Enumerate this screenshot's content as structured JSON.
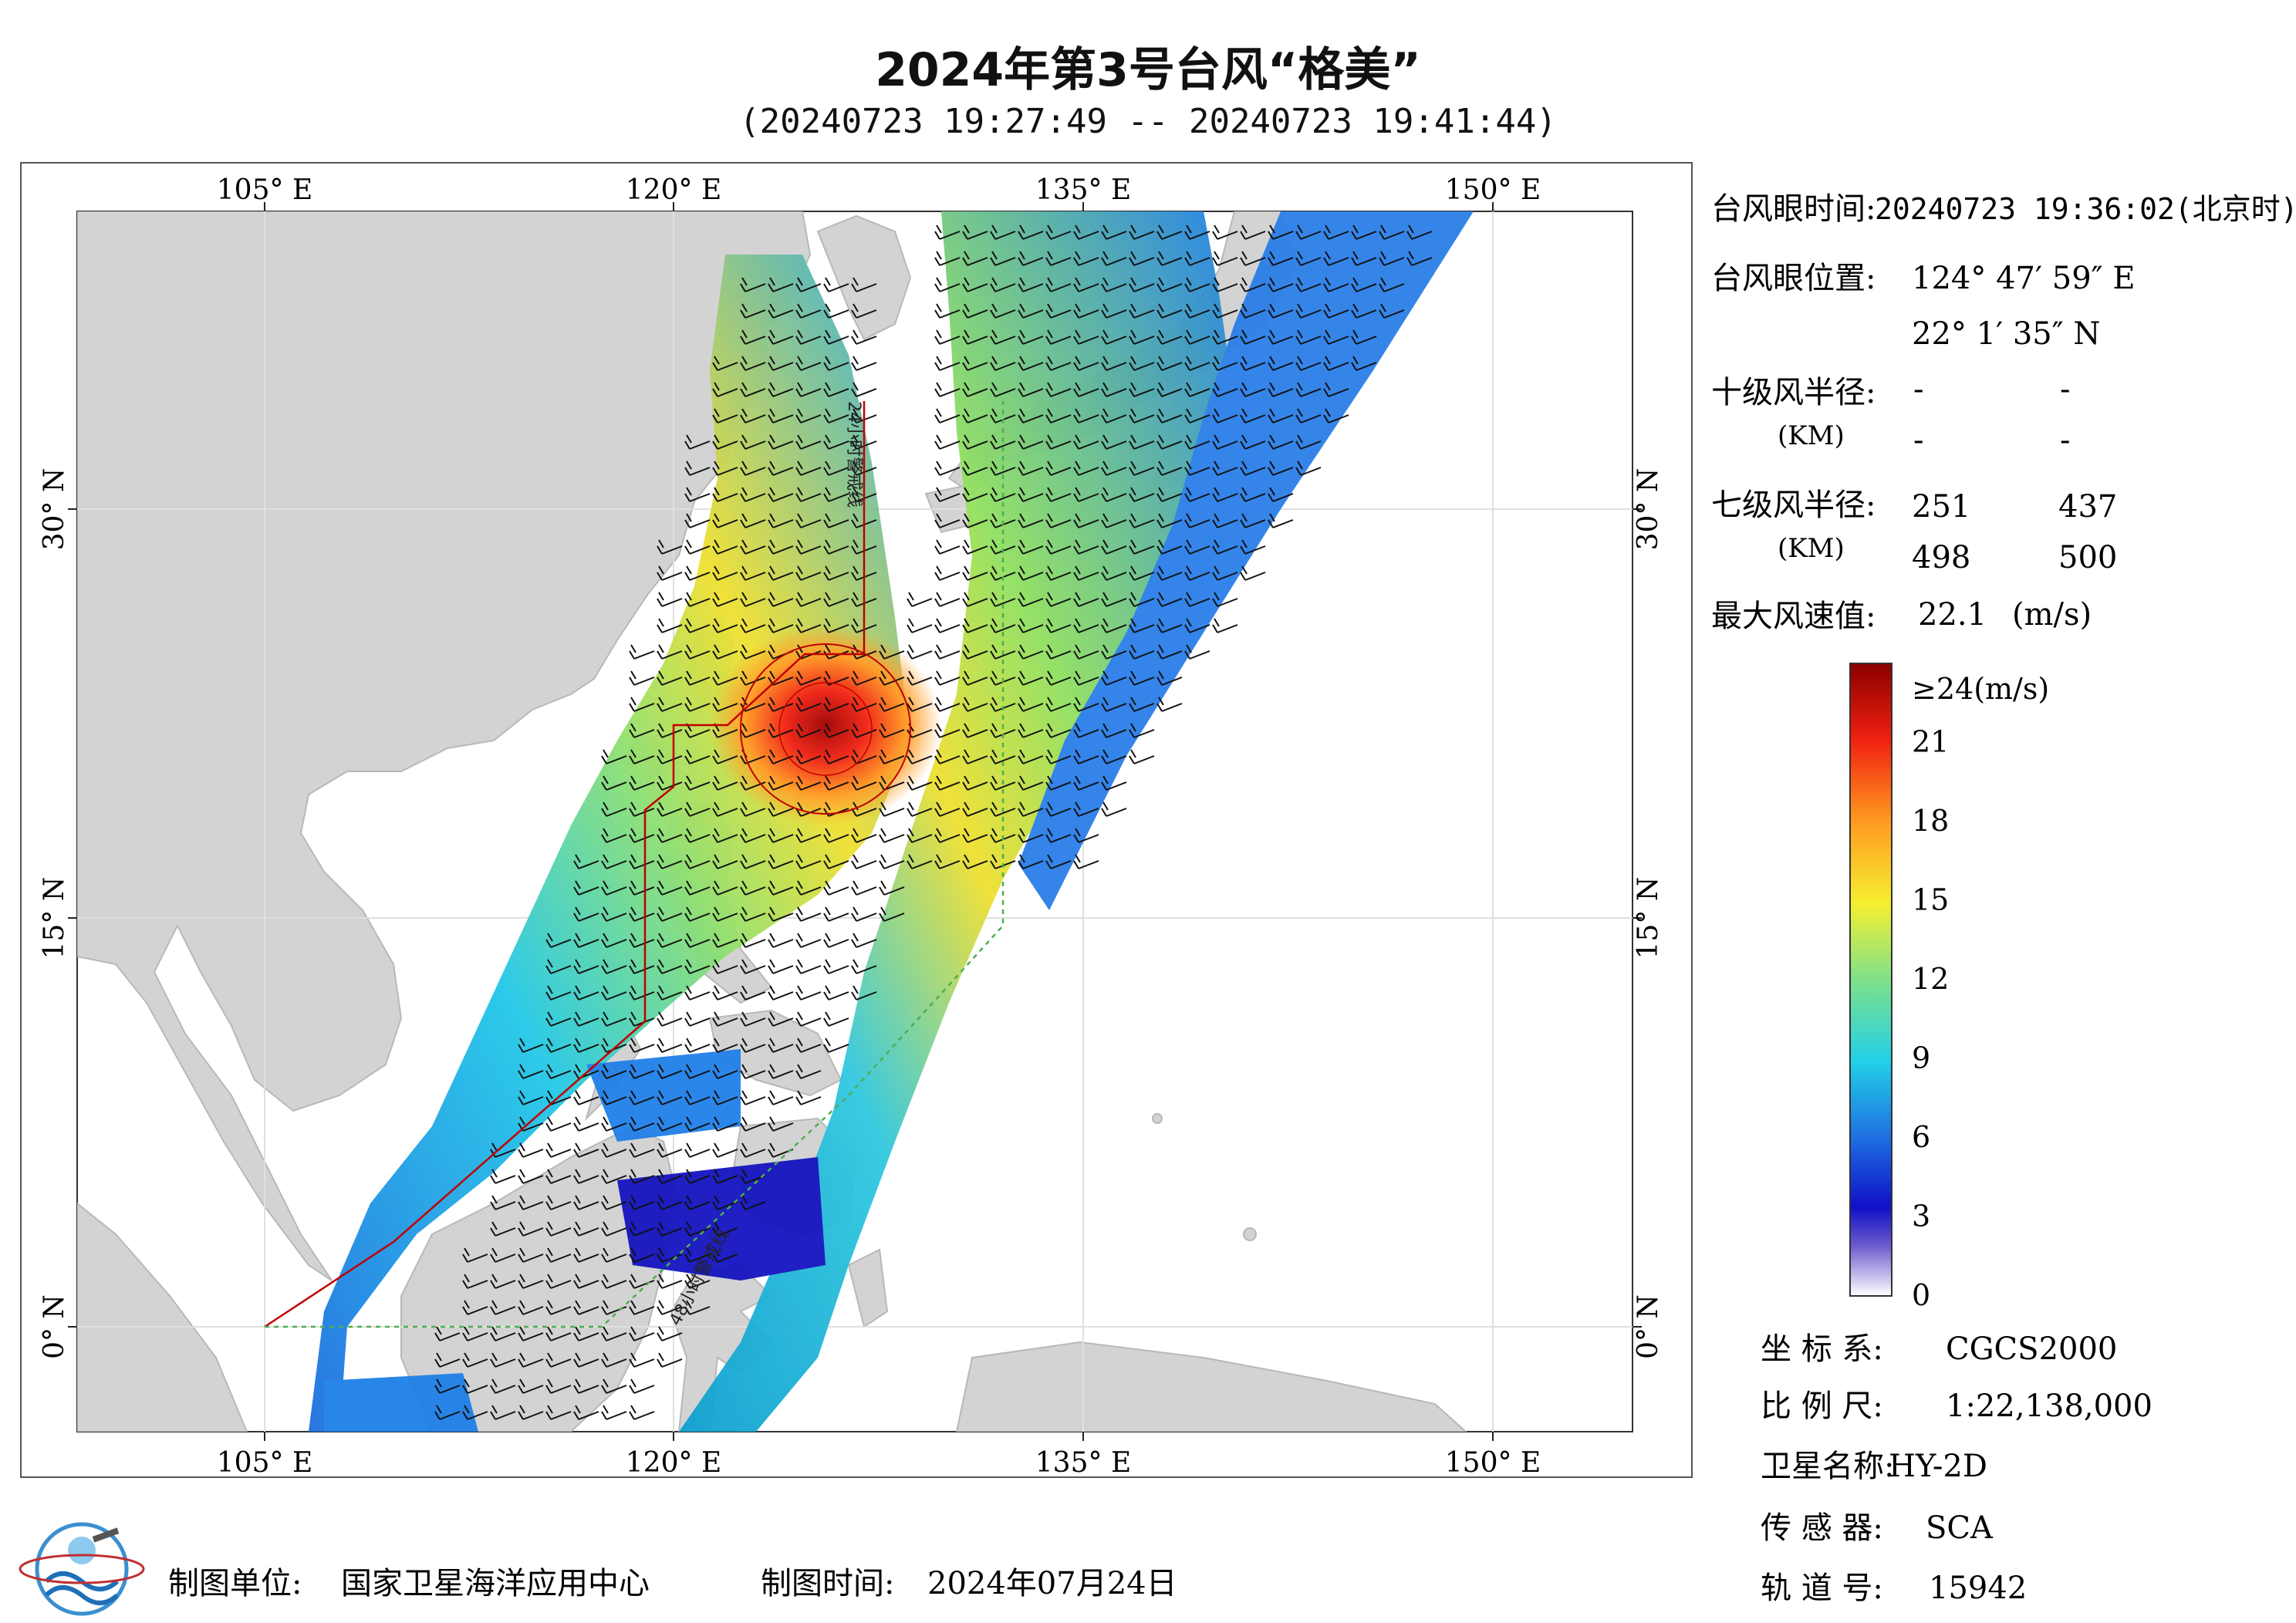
{
  "title": "2024年第3号台风“格美”",
  "subtitle": "(20240723 19:27:49 -- 20240723 19:41:44)",
  "map": {
    "lon_ticks_top": [
      "105° E",
      "120° E",
      "135° E",
      "150° E"
    ],
    "lon_ticks_bottom": [
      "105° E",
      "120° E",
      "135° E",
      "150° E"
    ],
    "lat_ticks_left": [
      "30° N",
      "15° N",
      "0° N"
    ],
    "lat_ticks_right": [
      "30° N",
      "15° N",
      "0° N"
    ],
    "line_label_24h": "24小时警戒线",
    "line_label_48h": "48小时警戒线",
    "colors": {
      "land": "#d3d3d3",
      "sea": "#ffffff",
      "warning_line_24h": "#c00000",
      "warning_line_48h": "#4caf50"
    }
  },
  "info": {
    "eye_time_label": "台风眼时间:",
    "eye_time_value": "20240723 19:36:02(北京时)",
    "eye_pos_label": "台风眼位置:",
    "eye_lon": "124° 47′ 59″ E",
    "eye_lat": "22° 1′ 35″ N",
    "r10_label": "十级风半径:",
    "r10_unit": "(KM)",
    "r10_values": [
      "-",
      "-",
      "-",
      "-"
    ],
    "r7_label": "七级风半径:",
    "r7_unit": "(KM)",
    "r7_values": [
      "251",
      "437",
      "498",
      "500"
    ],
    "max_wind_label": "最大风速值:",
    "max_wind_value": "22.1",
    "max_wind_unit": "(m/s)"
  },
  "colorbar": {
    "labels": [
      "≥24(m/s)",
      "21",
      "18",
      "15",
      "12",
      "9",
      "6",
      "3",
      "0"
    ],
    "values": [
      24,
      21,
      18,
      15,
      12,
      9,
      6,
      3,
      0
    ]
  },
  "meta": {
    "crs_label": "坐 标 系:",
    "crs_value": "CGCS2000",
    "scale_label": "比 例 尺:",
    "scale_value": "1:22,138,000",
    "satellite_label": "卫星名称:",
    "satellite_value": "HY-2D",
    "sensor_label": "传 感 器:",
    "sensor_value": "SCA",
    "orbit_label": "轨 道 号:",
    "orbit_value": "15942"
  },
  "footer": {
    "unit_label": "制图单位:",
    "unit_value": "国家卫星海洋应用中心",
    "time_label": "制图时间:",
    "time_value": "2024年07月24日"
  }
}
